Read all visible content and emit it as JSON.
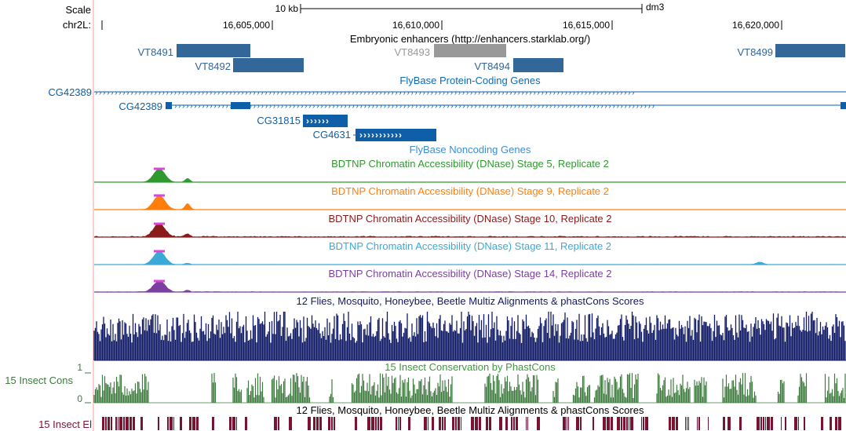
{
  "header": {
    "scale_label": "Scale",
    "chrom_label": "chr2L:",
    "scalebar_label": "10 kb",
    "assembly": "dm3",
    "positions": [
      "16,605,000",
      "16,610,000",
      "16,615,000",
      "16,620,000"
    ]
  },
  "tracks": {
    "enhancers": {
      "title": "Embryonic enhancers (http://enhancers.starklab.org/)",
      "items": [
        {
          "name": "VT8491",
          "color": "#336699"
        },
        {
          "name": "VT8492",
          "color": "#336699"
        },
        {
          "name": "VT8493",
          "color": "#999999"
        },
        {
          "name": "VT8494",
          "color": "#336699"
        },
        {
          "name": "VT8499",
          "color": "#336699"
        }
      ]
    },
    "coding_genes": {
      "title": "FlyBase Protein-Coding Genes",
      "color": "#0f5fa8",
      "genes": [
        "CG42389",
        "CG42389",
        "CG31815",
        "CG4631"
      ]
    },
    "noncoding_genes": {
      "title": "FlyBase Noncoding Genes"
    },
    "dnase": [
      {
        "title": "BDTNP Chromatin Accessibility (DNase) Stage 5, Replicate 2",
        "color": "#2e9a2e"
      },
      {
        "title": "BDTNP Chromatin Accessibility (DNase) Stage 9, Replicate 2",
        "color": "#ff7f0e"
      },
      {
        "title": "BDTNP Chromatin Accessibility (DNase) Stage 10, Replicate 2",
        "color": "#8b1a1a"
      },
      {
        "title": "BDTNP Chromatin Accessibility (DNase) Stage 11, Replicate 2",
        "color": "#3ba9d6"
      },
      {
        "title": "BDTNP Chromatin Accessibility (DNase) Stage 14, Replicate 2",
        "color": "#7a3fa0"
      }
    ],
    "multiz": {
      "title": "12 Flies, Mosquito, Honeybee, Beetle Multiz Alignments & phastCons Scores",
      "color": "#101a66"
    },
    "insect_cons": {
      "title": "15 Insect Conservation by PhastCons",
      "label": "15 Insect Cons",
      "axis_max": "1",
      "axis_min": "0",
      "color": "#3d7a3d"
    },
    "insect_el": {
      "title": "12 Flies, Mosquito, Honeybee, Beetle Multiz Alignments & phastCons Scores",
      "label": "15 Insect El",
      "color": "#7a1230"
    }
  }
}
